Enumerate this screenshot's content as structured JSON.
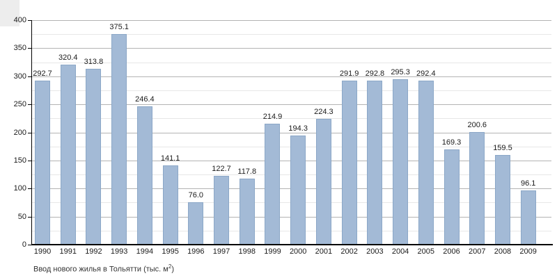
{
  "chart_data": {
    "type": "bar",
    "title": "Ввод нового жилья в Тольятти (тыс. м²)",
    "caption": {
      "main": "Ввод нового жилья в Тольятти (тыс. м",
      "sup": "2",
      "end": ")"
    },
    "categories": [
      "1990",
      "1991",
      "1992",
      "1993",
      "1994",
      "1995",
      "1996",
      "1997",
      "1998",
      "1999",
      "2000",
      "2001",
      "2002",
      "2003",
      "2004",
      "2005",
      "2006",
      "2007",
      "2008",
      "2009"
    ],
    "values": [
      292.7,
      320.4,
      313.8,
      375.1,
      246.4,
      141.1,
      76.0,
      122.7,
      117.8,
      214.9,
      194.3,
      224.3,
      291.9,
      292.8,
      295.3,
      292.4,
      169.3,
      200.6,
      159.5,
      96.1
    ],
    "value_labels": [
      "292.7",
      "320.4",
      "313.8",
      "375.1",
      "246.4",
      "141.1",
      "76.0",
      "122.7",
      "117.8",
      "214.9",
      "194.3",
      "224.3",
      "291.9",
      "292.8",
      "295.3",
      "292.4",
      "169.3",
      "200.6",
      "159.5",
      "96.1"
    ],
    "xlabel": "",
    "ylabel": "",
    "ylim": [
      0,
      400
    ],
    "yticks": [
      0,
      50,
      100,
      150,
      200,
      250,
      300,
      350,
      400
    ],
    "ytick_labels": [
      "0",
      "50",
      "100",
      "150",
      "200",
      "250",
      "300",
      "350",
      "400"
    ],
    "minor_grid_step": 25,
    "grid": "major-and-minor",
    "legend": "none",
    "colors": {
      "bar_fill": "#a3bad6",
      "bar_border": "#8ba7c7",
      "grid_major": "#b3b3b3",
      "grid_minor": "#e7e7e7",
      "axis": "#000000",
      "text": "#1a1a1a",
      "corner_artifact": "#ededed"
    }
  }
}
